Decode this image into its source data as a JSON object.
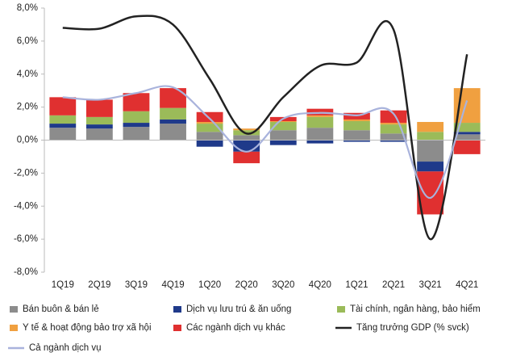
{
  "chart_data": {
    "type": "bar",
    "categories": [
      "1Q19",
      "2Q19",
      "3Q19",
      "4Q19",
      "1Q20",
      "2Q20",
      "3Q20",
      "4Q20",
      "1Q21",
      "2Q21",
      "3Q21",
      "4Q21"
    ],
    "ylim": [
      -8,
      8
    ],
    "yticks": [
      {
        "value": -8,
        "label": "-8,0%"
      },
      {
        "value": -6,
        "label": "-6,0%"
      },
      {
        "value": -4,
        "label": "-4,0%"
      },
      {
        "value": -2,
        "label": "-2,0%"
      },
      {
        "value": 0,
        "label": "0,0%"
      },
      {
        "value": 2,
        "label": "2,0%"
      },
      {
        "value": 4,
        "label": "4,0%"
      },
      {
        "value": 6,
        "label": "6,0%"
      },
      {
        "value": 8,
        "label": "8,0%"
      }
    ],
    "series": [
      {
        "name": "Bán buôn & bán lẻ",
        "type": "bar",
        "color": "#8c8c8c",
        "values": [
          0.75,
          0.7,
          0.8,
          1.0,
          0.5,
          0.3,
          0.6,
          0.75,
          0.6,
          0.4,
          -1.3,
          0.35
        ]
      },
      {
        "name": "Dịch vụ lưu trú & ăn uống",
        "type": "bar",
        "color": "#1f3a8a",
        "values": [
          0.25,
          0.25,
          0.25,
          0.25,
          -0.4,
          -0.7,
          -0.3,
          -0.2,
          -0.1,
          -0.1,
          -0.6,
          0.15
        ]
      },
      {
        "name": "Tài chính, ngân hàng, bảo hiểm",
        "type": "bar",
        "color": "#9bbb59",
        "values": [
          0.5,
          0.45,
          0.7,
          0.7,
          0.5,
          0.3,
          0.5,
          0.65,
          0.55,
          0.55,
          0.5,
          0.55
        ]
      },
      {
        "name": "Y tế & hoạt động bảo trợ xã hội",
        "type": "bar",
        "color": "#f0a040",
        "values": [
          0,
          0,
          0,
          0,
          0.1,
          0.1,
          0.05,
          0.1,
          0.1,
          0.1,
          0.6,
          2.1
        ]
      },
      {
        "name": "Các ngành dịch vụ khác",
        "type": "bar",
        "color": "#e03030",
        "values": [
          1.1,
          1.05,
          1.1,
          1.2,
          0.6,
          -0.7,
          0.25,
          0.4,
          0.4,
          0.75,
          -2.6,
          -0.85
        ]
      },
      {
        "name": "Tăng trưởng GDP (% svck)",
        "type": "line",
        "color": "#222222",
        "values": [
          6.8,
          6.75,
          7.5,
          7.0,
          3.7,
          0.4,
          2.6,
          4.5,
          4.7,
          6.7,
          -6.0,
          5.2
        ]
      },
      {
        "name": "Cả ngành dịch vụ",
        "type": "line",
        "color": "#a9b3dc",
        "values": [
          2.6,
          2.45,
          2.85,
          3.2,
          1.3,
          -0.7,
          1.3,
          1.65,
          1.5,
          1.6,
          -3.5,
          2.4
        ]
      }
    ]
  }
}
